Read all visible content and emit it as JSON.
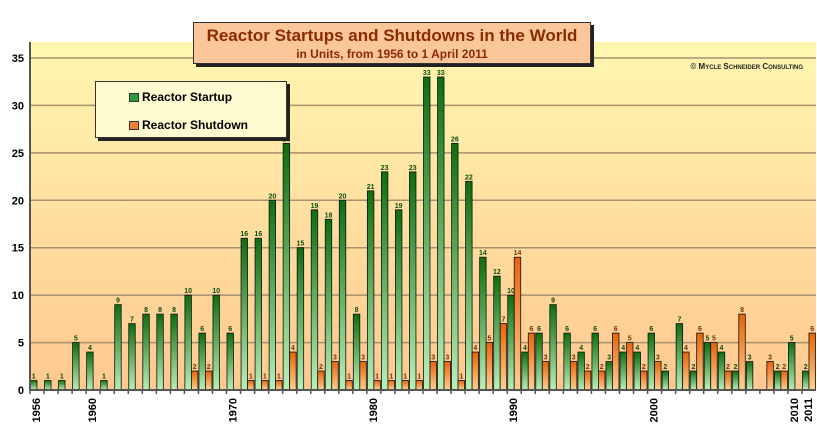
{
  "chart_data": {
    "type": "bar",
    "title": "Reactor Startups and Shutdowns in the World",
    "subtitle": "in Units, from 1956 to 1 April 2011",
    "copyright": "© Mycle Schneider Consulting",
    "xlabel": "",
    "ylabel": "",
    "ylim": [
      0,
      35
    ],
    "yticks": [
      "0",
      "5",
      "10",
      "15",
      "20",
      "25",
      "30",
      "35"
    ],
    "xticks": [
      "1956",
      "1960",
      "1970",
      "1980",
      "1990",
      "2000",
      "2010",
      "2011"
    ],
    "grid": true,
    "legend_position": "top-left",
    "categories": [
      1956,
      1957,
      1958,
      1959,
      1960,
      1961,
      1962,
      1963,
      1964,
      1965,
      1966,
      1967,
      1968,
      1969,
      1970,
      1971,
      1972,
      1973,
      1974,
      1975,
      1976,
      1977,
      1978,
      1979,
      1980,
      1981,
      1982,
      1983,
      1984,
      1985,
      1986,
      1987,
      1988,
      1989,
      1990,
      1991,
      1992,
      1993,
      1994,
      1995,
      1996,
      1997,
      1998,
      1999,
      2000,
      2001,
      2002,
      2003,
      2004,
      2005,
      2006,
      2007,
      2008,
      2009,
      2010,
      2011
    ],
    "series": [
      {
        "name": "Reactor Startup",
        "color": "#1a7a1a",
        "values": [
          1,
          1,
          1,
          5,
          4,
          1,
          9,
          7,
          8,
          8,
          8,
          10,
          6,
          10,
          6,
          16,
          16,
          20,
          26,
          15,
          19,
          18,
          20,
          8,
          21,
          23,
          19,
          23,
          33,
          33,
          26,
          22,
          14,
          12,
          10,
          4,
          6,
          9,
          6,
          4,
          6,
          3,
          4,
          4,
          6,
          2,
          7,
          2,
          5,
          4,
          2,
          3,
          0,
          2,
          5,
          2
        ]
      },
      {
        "name": "Reactor Shutdown",
        "color": "#f07a1a",
        "values": [
          0,
          0,
          0,
          0,
          0,
          0,
          0,
          0,
          0,
          0,
          0,
          2,
          2,
          0,
          0,
          1,
          1,
          1,
          4,
          0,
          2,
          3,
          1,
          3,
          1,
          1,
          1,
          1,
          3,
          3,
          1,
          4,
          5,
          7,
          14,
          6,
          3,
          0,
          3,
          2,
          2,
          6,
          5,
          2,
          3,
          0,
          4,
          6,
          5,
          2,
          8,
          0,
          3,
          2,
          0,
          6
        ]
      }
    ]
  }
}
